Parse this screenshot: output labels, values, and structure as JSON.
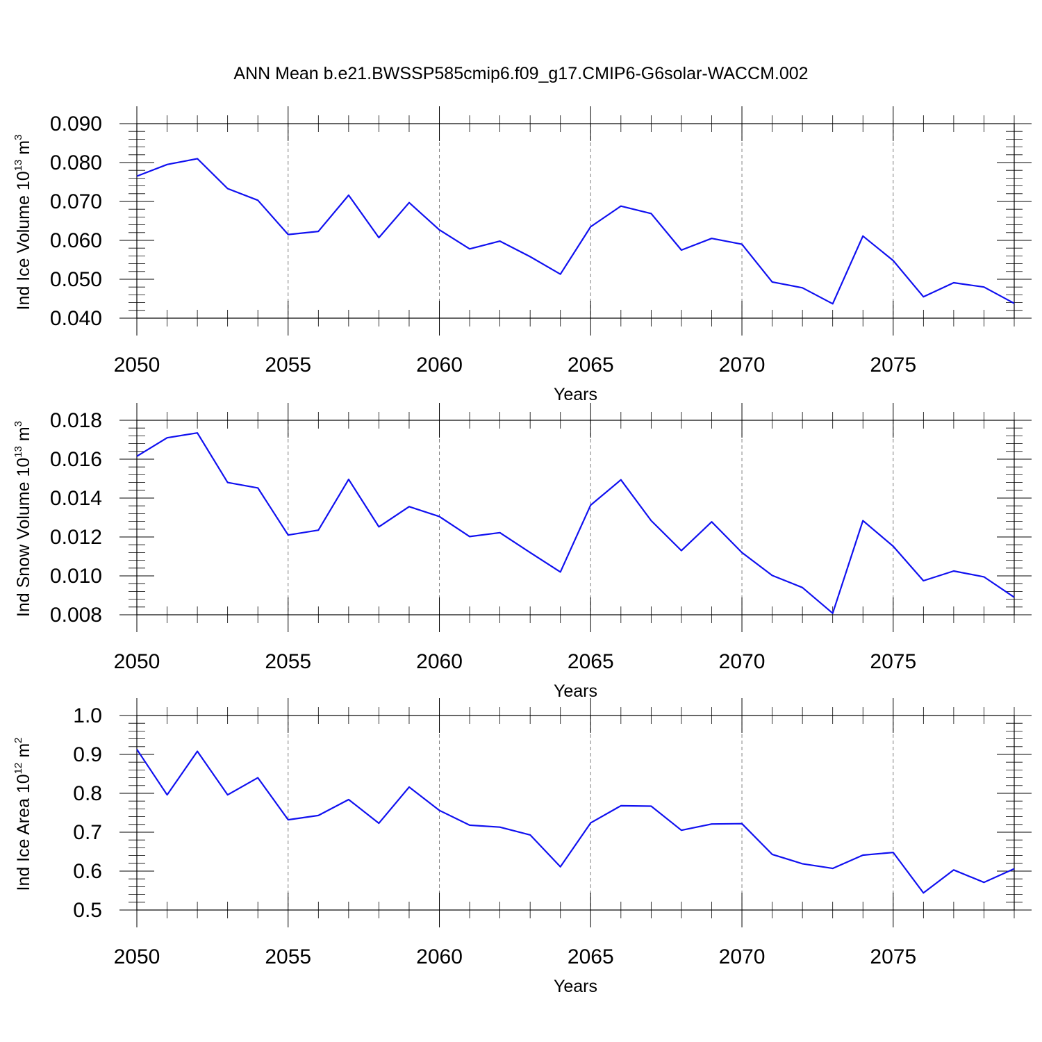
{
  "title": "ANN Mean b.e21.BWSSP585cmip6.f09_g17.CMIP6-G6solar-WACCM.002",
  "colors": {
    "series": "#1010f0",
    "grid": "#808080",
    "axis": "#000000"
  },
  "chart_data": [
    {
      "type": "line",
      "ylabel": {
        "main": "Ind Ice Volume 10",
        "exp": "13",
        "unit": " m",
        "unit_exp": "3"
      },
      "xlabel": "Years",
      "xlim": [
        2050,
        2079
      ],
      "ylim": [
        0.04,
        0.09
      ],
      "yticks": [
        0.04,
        0.05,
        0.06,
        0.07,
        0.08,
        0.09
      ],
      "ytick_labels": [
        "0.040",
        "0.050",
        "0.060",
        "0.070",
        "0.080",
        "0.090"
      ],
      "xticks": [
        2050,
        2055,
        2060,
        2065,
        2070,
        2075
      ],
      "xtick_labels": [
        "2050",
        "2055",
        "2060",
        "2065",
        "2070",
        "2075"
      ],
      "grid": "vertical dashed at major x ticks",
      "x": [
        2050,
        2051,
        2052,
        2053,
        2054,
        2055,
        2056,
        2057,
        2058,
        2059,
        2060,
        2061,
        2062,
        2063,
        2064,
        2065,
        2066,
        2067,
        2068,
        2069,
        2070,
        2071,
        2072,
        2073,
        2074,
        2075,
        2076,
        2077,
        2078,
        2079
      ],
      "values": [
        0.0765,
        0.0795,
        0.081,
        0.0733,
        0.0703,
        0.0615,
        0.0623,
        0.0716,
        0.0607,
        0.0697,
        0.0627,
        0.0578,
        0.0598,
        0.0558,
        0.0513,
        0.0635,
        0.0688,
        0.0669,
        0.0575,
        0.0605,
        0.059,
        0.0493,
        0.0478,
        0.0437,
        0.0611,
        0.0548,
        0.0455,
        0.0491,
        0.048,
        0.0438
      ]
    },
    {
      "type": "line",
      "ylabel": {
        "main": "Ind Snow Volume 10",
        "exp": "13",
        "unit": " m",
        "unit_exp": "3"
      },
      "xlabel": "Years",
      "xlim": [
        2050,
        2079
      ],
      "ylim": [
        0.008,
        0.018
      ],
      "yticks": [
        0.008,
        0.01,
        0.012,
        0.014,
        0.016,
        0.018
      ],
      "ytick_labels": [
        "0.008",
        "0.010",
        "0.012",
        "0.014",
        "0.016",
        "0.018"
      ],
      "xticks": [
        2050,
        2055,
        2060,
        2065,
        2070,
        2075
      ],
      "xtick_labels": [
        "2050",
        "2055",
        "2060",
        "2065",
        "2070",
        "2075"
      ],
      "grid": "vertical dashed at major x ticks",
      "x": [
        2050,
        2051,
        2052,
        2053,
        2054,
        2055,
        2056,
        2057,
        2058,
        2059,
        2060,
        2061,
        2062,
        2063,
        2064,
        2065,
        2066,
        2067,
        2068,
        2069,
        2070,
        2071,
        2072,
        2073,
        2074,
        2075,
        2076,
        2077,
        2078,
        2079
      ],
      "values": [
        0.01615,
        0.0171,
        0.01735,
        0.0148,
        0.01452,
        0.0121,
        0.01235,
        0.01496,
        0.01252,
        0.01356,
        0.01305,
        0.01202,
        0.01222,
        0.0112,
        0.0102,
        0.01364,
        0.01494,
        0.01284,
        0.0113,
        0.01278,
        0.0112,
        0.01002,
        0.0094,
        0.00808,
        0.01284,
        0.01152,
        0.00975,
        0.01025,
        0.00995,
        0.0089
      ]
    },
    {
      "type": "line",
      "ylabel": {
        "main": "Ind Ice Area 10",
        "exp": "12",
        "unit": " m",
        "unit_exp": "2"
      },
      "xlabel": "Years",
      "xlim": [
        2050,
        2079
      ],
      "ylim": [
        0.5,
        1.0
      ],
      "yticks": [
        0.5,
        0.6,
        0.7,
        0.8,
        0.9,
        1.0
      ],
      "ytick_labels": [
        "0.5",
        "0.6",
        "0.7",
        "0.8",
        "0.9",
        "1.0"
      ],
      "xticks": [
        2050,
        2055,
        2060,
        2065,
        2070,
        2075
      ],
      "xtick_labels": [
        "2050",
        "2055",
        "2060",
        "2065",
        "2070",
        "2075"
      ],
      "grid": "vertical dashed at major x ticks",
      "x": [
        2050,
        2051,
        2052,
        2053,
        2054,
        2055,
        2056,
        2057,
        2058,
        2059,
        2060,
        2061,
        2062,
        2063,
        2064,
        2065,
        2066,
        2067,
        2068,
        2069,
        2070,
        2071,
        2072,
        2073,
        2074,
        2075,
        2076,
        2077,
        2078,
        2079
      ],
      "values": [
        0.913,
        0.796,
        0.908,
        0.796,
        0.84,
        0.732,
        0.743,
        0.784,
        0.723,
        0.816,
        0.756,
        0.718,
        0.713,
        0.693,
        0.611,
        0.724,
        0.768,
        0.767,
        0.705,
        0.721,
        0.722,
        0.643,
        0.619,
        0.607,
        0.641,
        0.648,
        0.544,
        0.603,
        0.571,
        0.606
      ]
    }
  ]
}
